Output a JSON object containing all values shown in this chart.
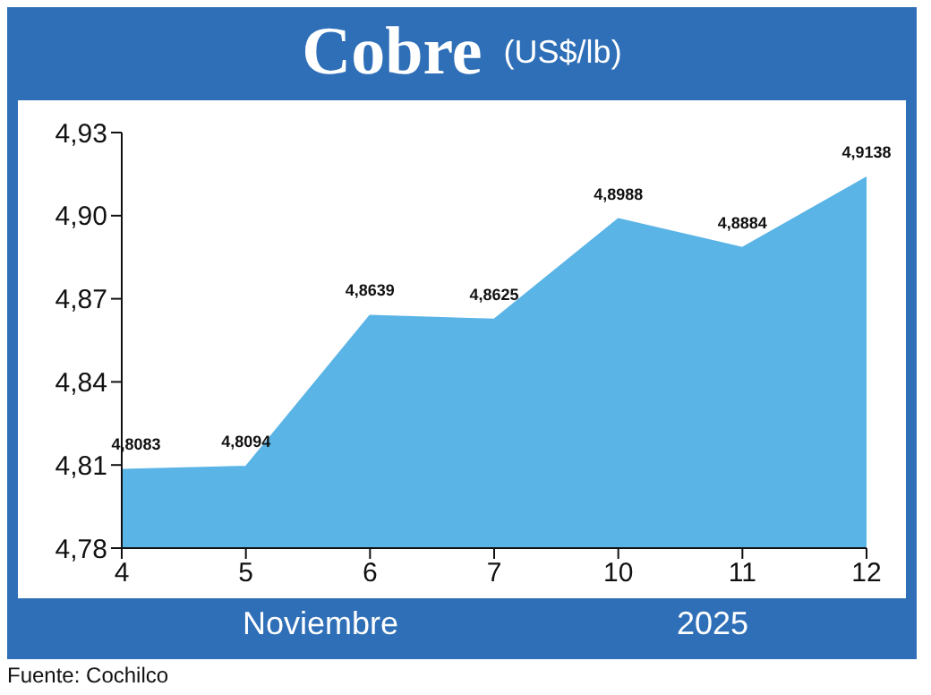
{
  "chart_data": {
    "type": "area",
    "title": "Cobre",
    "subtitle": "(US$/lb)",
    "xlabel": "Noviembre",
    "annotations": [
      "2025",
      "Fuente: Cochilco"
    ],
    "categories": [
      "4",
      "5",
      "6",
      "7",
      "10",
      "11",
      "12"
    ],
    "values": [
      4.8083,
      4.8094,
      4.8639,
      4.8625,
      4.8988,
      4.8884,
      4.9138
    ],
    "value_labels": [
      "4,8083",
      "4,8094",
      "4,8639",
      "4,8625",
      "4,8988",
      "4,8884",
      "4,9138"
    ],
    "color": "#5ab4e6",
    "ylim": [
      4.78,
      4.93
    ],
    "yticks": [
      {
        "value": 4.78,
        "label": "4,78"
      },
      {
        "value": 4.81,
        "label": "4,81"
      },
      {
        "value": 4.84,
        "label": "4,84"
      },
      {
        "value": 4.87,
        "label": "4,87"
      },
      {
        "value": 4.9,
        "label": "4,90"
      },
      {
        "value": 4.93,
        "label": "4,93"
      }
    ],
    "grid": false,
    "legend": false
  }
}
